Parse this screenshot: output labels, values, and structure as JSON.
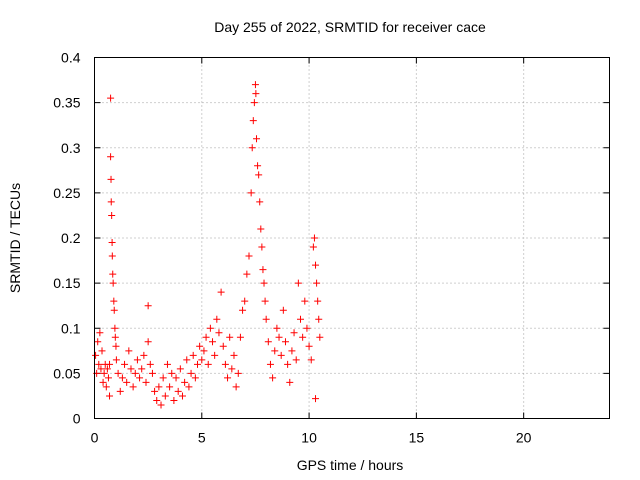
{
  "chart_data": {
    "type": "scatter",
    "title": "Day 255 of 2022, SRMTID for receiver cace",
    "xlabel": "GPS time / hours",
    "ylabel": "SRMTID / TECUs",
    "xlim": [
      0,
      24
    ],
    "ylim": [
      0,
      0.4
    ],
    "xticks": [
      0,
      5,
      10,
      15,
      20
    ],
    "xtick_labels": [
      "0",
      "5",
      "10",
      "15",
      "20"
    ],
    "yticks": [
      0,
      0.05,
      0.1,
      0.15,
      0.2,
      0.25,
      0.3,
      0.35,
      0.4
    ],
    "ytick_labels": [
      "0",
      "0.05",
      "0.1",
      "0.15",
      "0.2",
      "0.25",
      "0.3",
      "0.35",
      "0.4"
    ],
    "grid": true,
    "marker": "+",
    "color": "#ff0000",
    "series": [
      {
        "name": "SRMTID",
        "points": [
          [
            0.05,
            0.07
          ],
          [
            0.1,
            0.05
          ],
          [
            0.15,
            0.085
          ],
          [
            0.2,
            0.06
          ],
          [
            0.25,
            0.095
          ],
          [
            0.3,
            0.055
          ],
          [
            0.35,
            0.075
          ],
          [
            0.4,
            0.04
          ],
          [
            0.45,
            0.05
          ],
          [
            0.5,
            0.06
          ],
          [
            0.55,
            0.035
          ],
          [
            0.6,
            0.055
          ],
          [
            0.65,
            0.045
          ],
          [
            0.7,
            0.025
          ],
          [
            0.7,
            0.06
          ],
          [
            0.75,
            0.355
          ],
          [
            0.75,
            0.29
          ],
          [
            0.77,
            0.265
          ],
          [
            0.78,
            0.24
          ],
          [
            0.8,
            0.225
          ],
          [
            0.82,
            0.195
          ],
          [
            0.83,
            0.18
          ],
          [
            0.85,
            0.16
          ],
          [
            0.87,
            0.15
          ],
          [
            0.9,
            0.13
          ],
          [
            0.92,
            0.12
          ],
          [
            0.95,
            0.1
          ],
          [
            0.97,
            0.09
          ],
          [
            1.0,
            0.08
          ],
          [
            1.02,
            0.065
          ],
          [
            1.1,
            0.05
          ],
          [
            1.2,
            0.03
          ],
          [
            1.3,
            0.045
          ],
          [
            1.4,
            0.06
          ],
          [
            1.5,
            0.04
          ],
          [
            1.6,
            0.075
          ],
          [
            1.7,
            0.055
          ],
          [
            1.8,
            0.035
          ],
          [
            1.9,
            0.05
          ],
          [
            2.0,
            0.065
          ],
          [
            2.1,
            0.045
          ],
          [
            2.2,
            0.055
          ],
          [
            2.3,
            0.07
          ],
          [
            2.4,
            0.04
          ],
          [
            2.5,
            0.125
          ],
          [
            2.5,
            0.085
          ],
          [
            2.6,
            0.06
          ],
          [
            2.7,
            0.05
          ],
          [
            2.8,
            0.03
          ],
          [
            2.9,
            0.02
          ],
          [
            3.0,
            0.035
          ],
          [
            3.1,
            0.015
          ],
          [
            3.2,
            0.045
          ],
          [
            3.3,
            0.025
          ],
          [
            3.4,
            0.06
          ],
          [
            3.5,
            0.035
          ],
          [
            3.6,
            0.05
          ],
          [
            3.7,
            0.02
          ],
          [
            3.8,
            0.045
          ],
          [
            3.9,
            0.03
          ],
          [
            4.0,
            0.055
          ],
          [
            4.1,
            0.025
          ],
          [
            4.2,
            0.04
          ],
          [
            4.3,
            0.065
          ],
          [
            4.4,
            0.035
          ],
          [
            4.5,
            0.05
          ],
          [
            4.6,
            0.07
          ],
          [
            4.7,
            0.045
          ],
          [
            4.8,
            0.06
          ],
          [
            4.9,
            0.08
          ],
          [
            5.0,
            0.065
          ],
          [
            5.1,
            0.075
          ],
          [
            5.2,
            0.09
          ],
          [
            5.3,
            0.06
          ],
          [
            5.4,
            0.1
          ],
          [
            5.5,
            0.085
          ],
          [
            5.6,
            0.07
          ],
          [
            5.7,
            0.11
          ],
          [
            5.8,
            0.095
          ],
          [
            5.9,
            0.14
          ],
          [
            6.0,
            0.08
          ],
          [
            6.1,
            0.06
          ],
          [
            6.2,
            0.045
          ],
          [
            6.3,
            0.09
          ],
          [
            6.4,
            0.055
          ],
          [
            6.5,
            0.07
          ],
          [
            6.6,
            0.035
          ],
          [
            6.7,
            0.05
          ],
          [
            6.8,
            0.09
          ],
          [
            6.9,
            0.12
          ],
          [
            7.0,
            0.13
          ],
          [
            7.1,
            0.16
          ],
          [
            7.2,
            0.18
          ],
          [
            7.3,
            0.25
          ],
          [
            7.35,
            0.3
          ],
          [
            7.4,
            0.33
          ],
          [
            7.45,
            0.35
          ],
          [
            7.5,
            0.37
          ],
          [
            7.52,
            0.36
          ],
          [
            7.55,
            0.31
          ],
          [
            7.6,
            0.28
          ],
          [
            7.65,
            0.27
          ],
          [
            7.7,
            0.24
          ],
          [
            7.75,
            0.21
          ],
          [
            7.8,
            0.19
          ],
          [
            7.85,
            0.165
          ],
          [
            7.9,
            0.15
          ],
          [
            7.95,
            0.13
          ],
          [
            8.0,
            0.11
          ],
          [
            8.1,
            0.085
          ],
          [
            8.2,
            0.06
          ],
          [
            8.3,
            0.045
          ],
          [
            8.4,
            0.075
          ],
          [
            8.5,
            0.1
          ],
          [
            8.6,
            0.09
          ],
          [
            8.7,
            0.07
          ],
          [
            8.8,
            0.12
          ],
          [
            8.9,
            0.085
          ],
          [
            9.0,
            0.06
          ],
          [
            9.1,
            0.04
          ],
          [
            9.2,
            0.075
          ],
          [
            9.3,
            0.095
          ],
          [
            9.4,
            0.065
          ],
          [
            9.5,
            0.15
          ],
          [
            9.6,
            0.11
          ],
          [
            9.7,
            0.09
          ],
          [
            9.8,
            0.13
          ],
          [
            9.9,
            0.1
          ],
          [
            10.0,
            0.08
          ],
          [
            10.1,
            0.065
          ],
          [
            10.2,
            0.19
          ],
          [
            10.25,
            0.2
          ],
          [
            10.3,
            0.17
          ],
          [
            10.35,
            0.15
          ],
          [
            10.4,
            0.13
          ],
          [
            10.45,
            0.11
          ],
          [
            10.5,
            0.09
          ],
          [
            10.3,
            0.022
          ]
        ]
      }
    ]
  }
}
